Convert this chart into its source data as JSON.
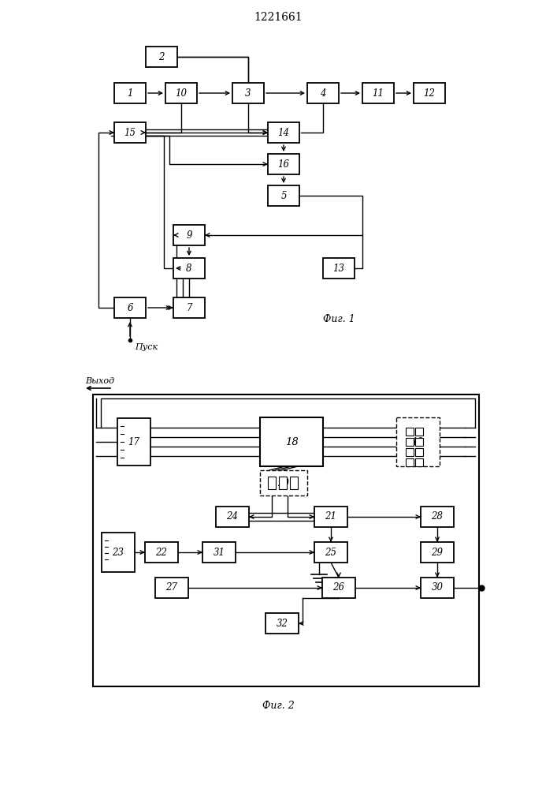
{
  "title": "1221661",
  "fig1_label": "Фиг. 1",
  "fig2_label": "Фиг. 2",
  "pusk_label": "Пуск",
  "vyhod_label": "Выход",
  "bg_color": "#ffffff"
}
